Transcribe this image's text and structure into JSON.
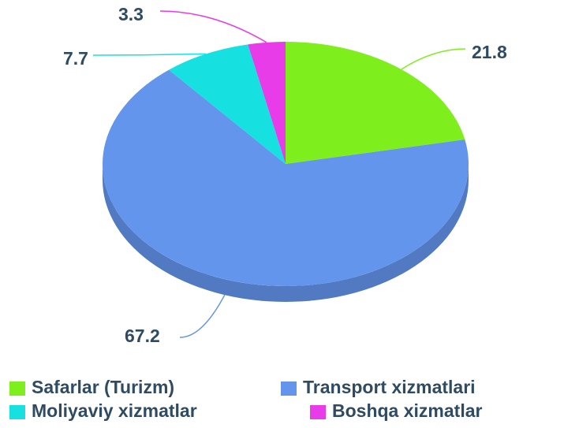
{
  "chart_data": {
    "type": "pie",
    "categories": [
      "Safarlar (Turizm)",
      "Transport xizmatlari",
      "Moliyaviy xizmatlar",
      "Boshqa xizmatlar"
    ],
    "values": [
      21.8,
      67.2,
      7.7,
      3.3
    ],
    "colors": [
      "#7fee1d",
      "#6495ed",
      "#16e0e0",
      "#e83ce8"
    ],
    "legend": "bottom"
  }
}
